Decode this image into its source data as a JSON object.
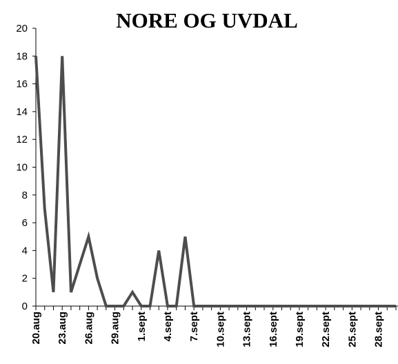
{
  "chart_data": {
    "type": "line",
    "title": "NORE OG UVDAL",
    "categories": [
      "20.aug",
      null,
      null,
      "23.aug",
      null,
      null,
      "26.aug",
      null,
      null,
      "29.aug",
      null,
      null,
      "1.sept",
      null,
      null,
      "4.sept",
      null,
      null,
      "7.sept",
      null,
      null,
      "10.sept",
      null,
      null,
      "13.sept",
      null,
      null,
      "16.sept",
      null,
      null,
      "19.sept",
      null,
      null,
      "22.sept",
      null,
      null,
      "25.sept",
      null,
      null,
      "28.sept",
      null,
      null
    ],
    "values": [
      18,
      7,
      1,
      18,
      1,
      3,
      5,
      2,
      0,
      0,
      0,
      1,
      0,
      0,
      4,
      0,
      0,
      5,
      0,
      0,
      0,
      0,
      0,
      0,
      0,
      0,
      0,
      0,
      0,
      0,
      0,
      0,
      0,
      0,
      0,
      0,
      0,
      0,
      0,
      0,
      0,
      0
    ],
    "color": "#4d4d4d",
    "ylim": [
      0,
      20
    ],
    "yticks": [
      0,
      2,
      4,
      6,
      8,
      10,
      12,
      14,
      16,
      18,
      20
    ],
    "grid": false
  }
}
